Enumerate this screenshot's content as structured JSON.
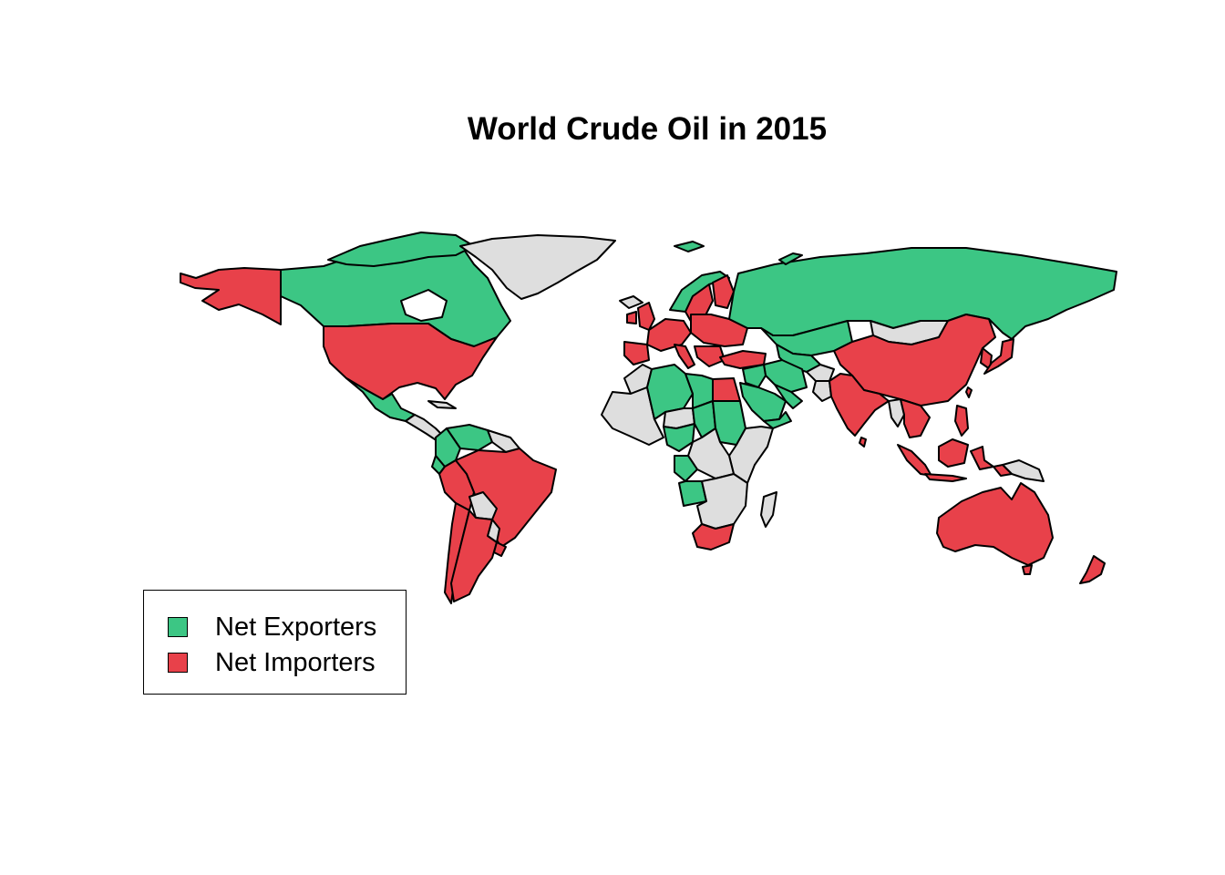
{
  "title": "World Crude Oil in 2015",
  "colors": {
    "exporter": "#3CC684",
    "importer": "#E8414A",
    "no_data": "#DEDEDE",
    "border": "#000000"
  },
  "legend": {
    "items": [
      {
        "label": "Net Exporters",
        "color": "#3CC684"
      },
      {
        "label": "Net Importers",
        "color": "#E8414A"
      }
    ]
  },
  "map": {
    "status": {
      "alaska": "importer",
      "canada": "exporter",
      "greenland": "no_data",
      "usa": "importer",
      "mexico": "exporter",
      "central_america": "no_data",
      "colombia": "exporter",
      "venezuela": "exporter",
      "ecuador": "exporter",
      "guianas": "no_data",
      "peru": "importer",
      "brazil": "importer",
      "bolivia": "no_data",
      "chile": "importer",
      "argentina": "importer",
      "paraguay": "no_data",
      "uruguay": "importer",
      "norway": "exporter",
      "sweden": "importer",
      "finland": "importer",
      "uk": "importer",
      "ireland": "importer",
      "iberia": "importer",
      "western_europe": "importer",
      "eastern_europe": "importer",
      "italy": "importer",
      "balkans": "importer",
      "turkey": "importer",
      "russia": "exporter",
      "kazakhstan": "exporter",
      "central_asia": "exporter",
      "mongolia": "no_data",
      "china": "importer",
      "korea": "importer",
      "japan": "importer",
      "india": "importer",
      "pakistan": "no_data",
      "afghanistan": "no_data",
      "iran": "exporter",
      "iraq": "exporter",
      "saudi_arabia": "exporter",
      "gulf_states": "exporter",
      "yemen": "exporter",
      "morocco": "no_data",
      "algeria": "exporter",
      "libya": "exporter",
      "egypt": "importer",
      "west_africa": "no_data",
      "nigeria": "exporter",
      "chad": "exporter",
      "sudan": "exporter",
      "east_africa": "no_data",
      "gabon_congo": "exporter",
      "angola": "exporter",
      "southern_africa": "no_data",
      "south_africa": "importer",
      "madagascar": "no_data",
      "southeast_asia": "importer",
      "myanmar": "no_data",
      "indonesia": "importer",
      "philippines": "importer",
      "papua_new_guinea": "no_data",
      "australia": "importer",
      "new_zealand": "importer"
    }
  }
}
